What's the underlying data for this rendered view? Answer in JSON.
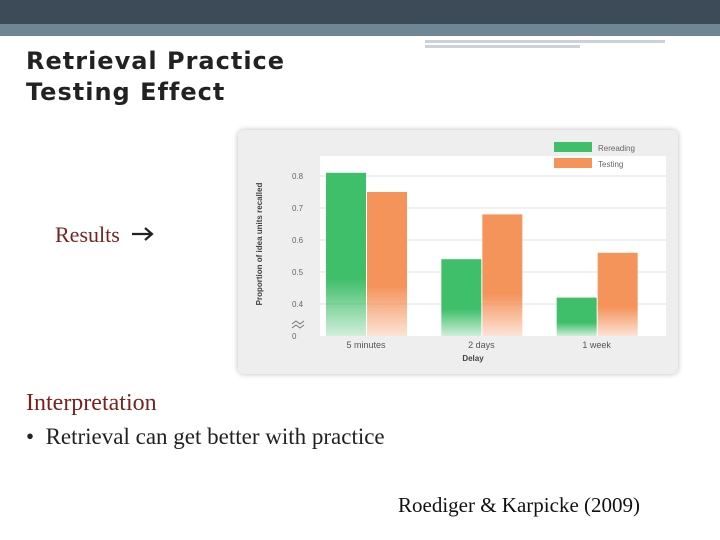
{
  "slide": {
    "title_line1": "Retrieval Practice",
    "title_line2": "Testing Effect",
    "results_label": "Results",
    "results_arrow_icon": "right-arrow-icon",
    "interpretation_heading": "Interpretation",
    "bullet": "Retrieval can get better with practice",
    "citation": "Roediger & Karpicke (2009)",
    "colors": {
      "header_dark": "#3d4a57",
      "header_accent": "#6f8794",
      "heading_red": "#7b1f1f"
    }
  },
  "chart_data": {
    "type": "bar",
    "categories": [
      "5 minutes",
      "2 days",
      "1 week"
    ],
    "series": [
      {
        "name": "Rereading",
        "values": [
          0.81,
          0.54,
          0.42
        ],
        "color": "#3fbf6a"
      },
      {
        "name": "Testing",
        "values": [
          0.75,
          0.68,
          0.56
        ],
        "color": "#f4935a"
      }
    ],
    "xlabel": "Delay",
    "ylabel": "Proportion of idea units recalled",
    "yticks": [
      "0",
      "0.4",
      "0.5",
      "0.6",
      "0.7",
      "0.8"
    ],
    "ylim": [
      0,
      0.9
    ],
    "axis_break": true,
    "legend_position": "top-right",
    "grid": true
  }
}
